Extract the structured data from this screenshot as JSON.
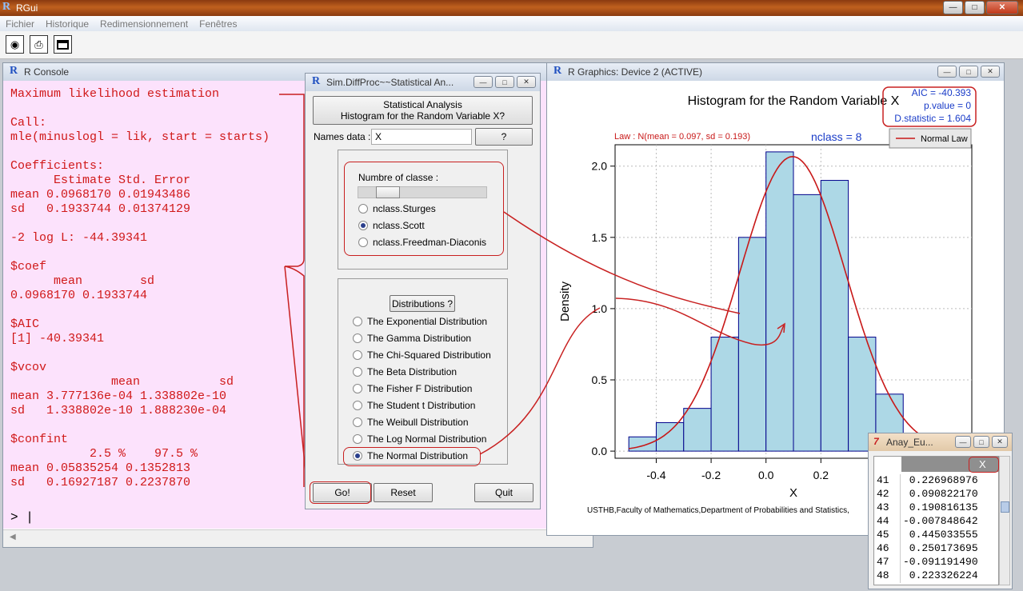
{
  "app": {
    "logo": "R",
    "title": "RGui",
    "menu": [
      "Fichier",
      "Historique",
      "Redimensionnement",
      "Fenêtres"
    ]
  },
  "toolbar_icons": [
    "camera-icon",
    "printer-icon",
    "window-icon"
  ],
  "console": {
    "title": "R Console",
    "lines": [
      "Maximum likelihood estimation",
      "",
      "Call:",
      "mle(minuslogl = lik, start = starts)",
      "",
      "Coefficients:",
      "      Estimate Std. Error",
      "mean 0.0968170 0.01943486",
      "sd   0.1933744 0.01374129",
      "",
      "-2 log L: -44.39341",
      "",
      "$coef",
      "      mean        sd",
      "0.0968170 0.1933744",
      "",
      "$AIC",
      "[1] -40.39341",
      "",
      "$vcov",
      "              mean           sd",
      "mean 3.777136e-04 1.338802e-10",
      "sd   1.338802e-10 1.888230e-04",
      "",
      "$confint",
      "           2.5 %    97.5 %",
      "mean 0.05835254 0.1352813",
      "sd   0.16927187 0.2237870"
    ],
    "prompt": "> |"
  },
  "dialog": {
    "title": "Sim.DiffProc~~Statistical An...",
    "header_line1": "Statistical Analysis",
    "header_line2": "Histogram for the Random Variable X?",
    "names_label": "Names data :",
    "names_value": "X",
    "help_button": "?",
    "classes_label": "Numbre of classe :",
    "class_options": [
      "nclass.Sturges",
      "nclass.Scott",
      "nclass.Freedman-Diaconis"
    ],
    "class_selected": 1,
    "distributions_button": "Distributions ?",
    "distributions": [
      "The Exponential Distribution",
      "The Gamma Distribution",
      "The Chi-Squared Distribution",
      "The Beta Distribution",
      "The Fisher F Distribution",
      "The Student t Distribution",
      "The Weibull Distribution",
      "The Log Normal Distribution",
      "The Normal Distribution"
    ],
    "dist_selected": 8,
    "go": "Go!",
    "reset": "Reset",
    "quit": "Quit"
  },
  "graphics": {
    "title": "R Graphics: Device 2 (ACTIVE)",
    "footer": "USTHB,Faculty of Mathematics,Department of Probabilities and Statistics,"
  },
  "chart_data": {
    "type": "bar",
    "title": "Histogram for the Random Variable X",
    "subtitle": "Law : N(mean = 0.097, sd = 0.193)",
    "nclass_label": "nclass = 8",
    "xlabel": "X",
    "ylabel": "Density",
    "xticks": [
      "-0.4",
      "-0.2",
      "0.0",
      "0.2"
    ],
    "yticks": [
      "0.0",
      "0.5",
      "1.0",
      "1.5",
      "2.0"
    ],
    "bins": [
      [
        -0.5,
        -0.4
      ],
      [
        -0.4,
        -0.3
      ],
      [
        -0.3,
        -0.2
      ],
      [
        -0.2,
        -0.1
      ],
      [
        -0.1,
        0.0
      ],
      [
        0.0,
        0.1
      ],
      [
        0.1,
        0.2
      ],
      [
        0.2,
        0.3
      ],
      [
        0.3,
        0.4
      ],
      [
        0.4,
        0.5
      ],
      [
        0.5,
        0.6
      ]
    ],
    "values": [
      0.1,
      0.2,
      0.3,
      0.8,
      1.5,
      2.1,
      1.8,
      1.9,
      0.8,
      0.4,
      0.1
    ],
    "normal_mean": 0.097,
    "normal_sd": 0.193,
    "ylim": [
      -0.05,
      2.15
    ],
    "xlim": [
      -0.55,
      0.75
    ],
    "legend": [
      "Normal Law"
    ],
    "stats": [
      "AIC = -40.393",
      "p.value = 0",
      "D.statistic = 1.604"
    ],
    "grid": true,
    "legend_position": "top-right"
  },
  "anay": {
    "title": "Anay_Eu...",
    "header": "X",
    "rows": [
      [
        "41",
        " 0.226968976"
      ],
      [
        "42",
        " 0.090822170"
      ],
      [
        "43",
        " 0.190816135"
      ],
      [
        "44",
        "-0.007848642"
      ],
      [
        "45",
        " 0.445033555"
      ],
      [
        "46",
        " 0.250173695"
      ],
      [
        "47",
        "-0.091191490"
      ],
      [
        "48",
        " 0.223326224"
      ]
    ]
  }
}
